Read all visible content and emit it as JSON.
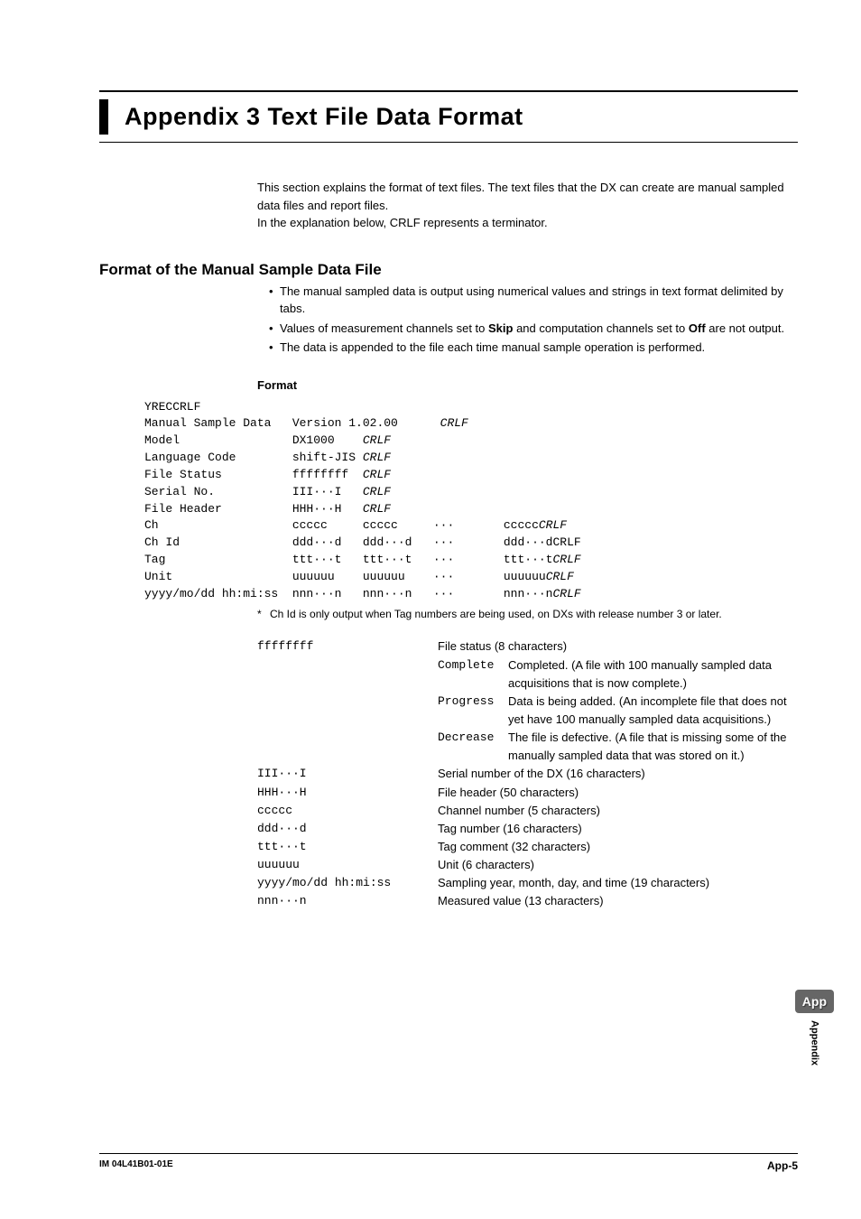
{
  "title": "Appendix 3   Text File Data Format",
  "intro_lines": [
    "This section explains the format of text files. The text files that the DX can create are manual sampled data files and report files.",
    "In the explanation below, CRLF represents a terminator."
  ],
  "section1_heading": "Format of the Manual Sample Data File",
  "bullets": [
    {
      "pre": "The manual sampled data is output using numerical values and strings in text format delimited by tabs."
    },
    {
      "pre": "Values of measurement channels set to ",
      "b1": "Skip",
      "mid": " and computation channels set to ",
      "b2": "Off",
      "post": " are not output."
    },
    {
      "pre": "The data is appended to the file each time manual sample operation is performed."
    }
  ],
  "format_heading": "Format",
  "mono_rows": [
    [
      "YRECCRLF"
    ],
    [
      "Manual Sample Data   Version 1.02.00      ",
      {
        "i": "CRLF"
      }
    ],
    [
      "Model                DX1000    ",
      {
        "i": "CRLF"
      }
    ],
    [
      "Language Code        shift-JIS ",
      {
        "i": "CRLF"
      }
    ],
    [
      "File Status          ffffffff  ",
      {
        "i": "CRLF"
      }
    ],
    [
      "Serial No.           III···I   ",
      {
        "i": "CRLF"
      }
    ],
    [
      "File Header          HHH···H   ",
      {
        "i": "CRLF"
      }
    ],
    [
      "Ch                   ccccc     ccccc     ···       ccccc",
      {
        "i": "CRLF"
      }
    ],
    [
      "Ch Id                ddd···d   ddd···d   ···       ddd···dCRLF"
    ],
    [
      "Tag                  ttt···t   ttt···t   ···       ttt···t",
      {
        "i": "CRLF"
      }
    ],
    [
      "Unit                 uuuuuu    uuuuuu    ···       uuuuuu",
      {
        "i": "CRLF"
      }
    ],
    [
      "yyyy/mo/dd hh:mi:ss  nnn···n   nnn···n   ···       nnn···n",
      {
        "i": "CRLF"
      }
    ]
  ],
  "footnote": "Ch Id is only output when Tag numbers are being used, on DXs with release number 3 or later.",
  "defs": {
    "status": {
      "code": "ffffffff",
      "desc": "File status (8 characters)",
      "subs": [
        {
          "code": "Complete",
          "desc": "Completed. (A file with 100 manually sampled data acquisitions that is now complete.)"
        },
        {
          "code": "Progress",
          "desc": "Data is being added. (An incomplete file that does not yet have 100 manually sampled data acquisitions.)"
        },
        {
          "code": "Decrease",
          "desc": "The file is defective. (A file that is missing some of the manually sampled data that was stored on it.)"
        }
      ]
    },
    "rows": [
      {
        "code": "III···I",
        "desc": "Serial number of the DX (16 characters)"
      },
      {
        "code": "HHH···H",
        "desc": "File header (50 characters)"
      },
      {
        "code": "ccccc",
        "desc": "Channel number (5 characters)"
      },
      {
        "code": "ddd···d",
        "desc": "Tag number (16 characters)"
      },
      {
        "code": "ttt···t",
        "desc": "Tag comment (32 characters)"
      },
      {
        "code": "uuuuuu",
        "desc": "Unit (6 characters)"
      },
      {
        "code": "yyyy/mo/dd hh:mi:ss",
        "desc": "Sampling year, month, day, and time (19 characters)"
      },
      {
        "code": "nnn···n",
        "desc": "Measured value (13 characters)"
      }
    ]
  },
  "side_tab": {
    "badge": "App",
    "label": "Appendix"
  },
  "footer": {
    "left": "IM 04L41B01-01E",
    "right": "App-5"
  },
  "colors": {
    "tab_bg": "#666666"
  }
}
